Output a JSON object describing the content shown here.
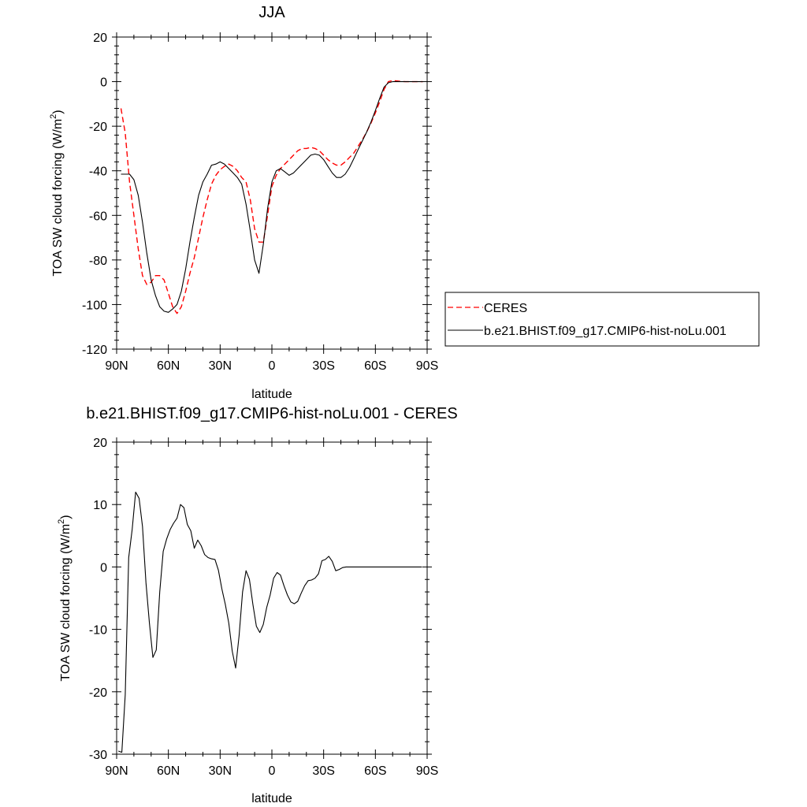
{
  "chart_data": [
    {
      "type": "line",
      "title": "JJA",
      "xlabel": "latitude",
      "ylabel": "TOA SW cloud forcing (W/m²)",
      "ylabel_parts": {
        "main": "TOA SW cloud forcing (W/m",
        "sup": "2",
        "end": ")"
      },
      "xlim": [
        90,
        -90
      ],
      "ylim": [
        -120,
        20
      ],
      "xticks": [
        90,
        60,
        30,
        0,
        -30,
        -60,
        -90
      ],
      "xtick_labels": [
        "90N",
        "60N",
        "30N",
        "0",
        "30S",
        "60S",
        "90S"
      ],
      "yticks": [
        20,
        0,
        -20,
        -40,
        -60,
        -80,
        -100,
        -120
      ],
      "ytick_labels": [
        "20",
        "0",
        "-20",
        "-40",
        "-60",
        "-80",
        "-100",
        "-120"
      ],
      "legend": {
        "placement": "right",
        "entries": [
          "CERES",
          "b.e21.BHIST.f09_g17.CMIP6-hist-noLu.001"
        ]
      },
      "series": [
        {
          "name": "CERES",
          "color": "#ff0000",
          "dash": "dashed",
          "points": [
            [
              87.5,
              -12
            ],
            [
              85,
              -23
            ],
            [
              82.5,
              -45
            ],
            [
              80,
              -60
            ],
            [
              77.5,
              -75
            ],
            [
              75,
              -87
            ],
            [
              72.5,
              -91
            ],
            [
              70,
              -90
            ],
            [
              67.5,
              -87
            ],
            [
              65,
              -87
            ],
            [
              62.5,
              -89
            ],
            [
              60,
              -95
            ],
            [
              57.5,
              -101
            ],
            [
              55,
              -104
            ],
            [
              52.5,
              -101
            ],
            [
              50,
              -94
            ],
            [
              47.5,
              -86
            ],
            [
              45,
              -79
            ],
            [
              42.5,
              -70
            ],
            [
              40,
              -61
            ],
            [
              37.5,
              -53
            ],
            [
              35,
              -46
            ],
            [
              32.5,
              -42
            ],
            [
              30,
              -39.5
            ],
            [
              27.5,
              -38
            ],
            [
              25,
              -37
            ],
            [
              22.5,
              -38
            ],
            [
              20,
              -40
            ],
            [
              17.5,
              -43
            ],
            [
              15,
              -45
            ],
            [
              12.5,
              -53
            ],
            [
              10,
              -66
            ],
            [
              7.5,
              -72
            ],
            [
              5,
              -72
            ],
            [
              2.5,
              -60
            ],
            [
              0,
              -47
            ],
            [
              -2.5,
              -42
            ],
            [
              -5,
              -39
            ],
            [
              -7.5,
              -37
            ],
            [
              -10,
              -35
            ],
            [
              -12.5,
              -33
            ],
            [
              -15,
              -31
            ],
            [
              -17.5,
              -30
            ],
            [
              -20,
              -30
            ],
            [
              -22.5,
              -29.5
            ],
            [
              -25,
              -30
            ],
            [
              -27.5,
              -31
            ],
            [
              -30,
              -33
            ],
            [
              -32.5,
              -35
            ],
            [
              -35,
              -36.5
            ],
            [
              -37.5,
              -37.5
            ],
            [
              -40,
              -37.5
            ],
            [
              -42.5,
              -36
            ],
            [
              -45,
              -34
            ],
            [
              -47.5,
              -32
            ],
            [
              -50,
              -29
            ],
            [
              -52.5,
              -26
            ],
            [
              -55,
              -22.5
            ],
            [
              -57.5,
              -18.5
            ],
            [
              -60,
              -14
            ],
            [
              -62.5,
              -9
            ],
            [
              -65,
              -3.5
            ],
            [
              -67.5,
              0
            ],
            [
              -70,
              0.5
            ],
            [
              -72.5,
              0.3
            ],
            [
              -75,
              0.1
            ],
            [
              -77.5,
              0
            ],
            [
              -80,
              0
            ],
            [
              -82.5,
              0
            ],
            [
              -85,
              0
            ],
            [
              -87.5,
              0
            ]
          ]
        },
        {
          "name": "b.e21.BHIST.f09_g17.CMIP6-hist-noLu.001",
          "color": "#000000",
          "dash": "solid",
          "points": [
            [
              87.5,
              -41.5
            ],
            [
              85,
              -41.5
            ],
            [
              82.5,
              -41.5
            ],
            [
              80,
              -44
            ],
            [
              77.5,
              -51
            ],
            [
              75,
              -63
            ],
            [
              72.5,
              -77
            ],
            [
              70,
              -89
            ],
            [
              67.5,
              -96
            ],
            [
              65,
              -101
            ],
            [
              62.5,
              -103
            ],
            [
              60,
              -103.5
            ],
            [
              57.5,
              -102
            ],
            [
              55,
              -100
            ],
            [
              52.5,
              -94
            ],
            [
              50,
              -84
            ],
            [
              47.5,
              -72
            ],
            [
              45,
              -61
            ],
            [
              42.5,
              -51
            ],
            [
              40,
              -45
            ],
            [
              37.5,
              -41.5
            ],
            [
              35,
              -37.5
            ],
            [
              32.5,
              -37
            ],
            [
              30,
              -36
            ],
            [
              27.5,
              -37
            ],
            [
              25,
              -39
            ],
            [
              22.5,
              -41
            ],
            [
              20,
              -43
            ],
            [
              17.5,
              -46
            ],
            [
              15,
              -55
            ],
            [
              12.5,
              -67
            ],
            [
              10,
              -80
            ],
            [
              7.5,
              -86
            ],
            [
              5,
              -73
            ],
            [
              2.5,
              -57
            ],
            [
              0,
              -45
            ],
            [
              -2.5,
              -40
            ],
            [
              -5,
              -39
            ],
            [
              -7.5,
              -40.5
            ],
            [
              -10,
              -42
            ],
            [
              -12.5,
              -41
            ],
            [
              -15,
              -39
            ],
            [
              -17.5,
              -37
            ],
            [
              -20,
              -35
            ],
            [
              -22.5,
              -33
            ],
            [
              -25,
              -32.5
            ],
            [
              -27.5,
              -33
            ],
            [
              -30,
              -35
            ],
            [
              -32.5,
              -38
            ],
            [
              -35,
              -41
            ],
            [
              -37.5,
              -43
            ],
            [
              -40,
              -43
            ],
            [
              -42.5,
              -41.5
            ],
            [
              -45,
              -38.5
            ],
            [
              -47.5,
              -34.5
            ],
            [
              -50,
              -30.5
            ],
            [
              -52.5,
              -26.5
            ],
            [
              -55,
              -22.5
            ],
            [
              -57.5,
              -18
            ],
            [
              -60,
              -13
            ],
            [
              -62.5,
              -7.5
            ],
            [
              -65,
              -2.5
            ],
            [
              -67.5,
              -0.5
            ],
            [
              -70,
              0
            ],
            [
              -72.5,
              0
            ],
            [
              -75,
              0
            ],
            [
              -77.5,
              0
            ],
            [
              -80,
              0
            ],
            [
              -82.5,
              0
            ],
            [
              -85,
              0
            ],
            [
              -87.5,
              0
            ]
          ]
        }
      ]
    },
    {
      "type": "line",
      "title": "b.e21.BHIST.f09_g17.CMIP6-hist-noLu.001 - CERES",
      "xlabel": "latitude",
      "ylabel": "TOA SW cloud forcing (W/m²)",
      "ylabel_parts": {
        "main": "TOA SW cloud forcing (W/m",
        "sup": "2",
        "end": ")"
      },
      "xlim": [
        90,
        -90
      ],
      "ylim": [
        -30,
        20
      ],
      "xticks": [
        90,
        60,
        30,
        0,
        -30,
        -60,
        -90
      ],
      "xtick_labels": [
        "90N",
        "60N",
        "30N",
        "0",
        "30S",
        "60S",
        "90S"
      ],
      "yticks": [
        20,
        10,
        0,
        -10,
        -20,
        -30
      ],
      "ytick_labels": [
        "20",
        "10",
        "0",
        "-10",
        "-20",
        "-30"
      ],
      "series": [
        {
          "color": "#000000",
          "dash": "solid",
          "points": [
            [
              89,
              -29.5
            ],
            [
              87,
              -29.7
            ],
            [
              85,
              -20.5
            ],
            [
              83,
              1.5
            ],
            [
              81,
              6
            ],
            [
              79,
              12
            ],
            [
              77,
              11
            ],
            [
              75,
              6.5
            ],
            [
              73,
              -2.5
            ],
            [
              71,
              -9
            ],
            [
              69,
              -14.5
            ],
            [
              67,
              -13.3
            ],
            [
              65,
              -4
            ],
            [
              63,
              2.5
            ],
            [
              61,
              4.5
            ],
            [
              59,
              6
            ],
            [
              57,
              7
            ],
            [
              55,
              7.8
            ],
            [
              53,
              10
            ],
            [
              51,
              9.5
            ],
            [
              49,
              6.8
            ],
            [
              47,
              5.8
            ],
            [
              45,
              3
            ],
            [
              43,
              4.3
            ],
            [
              41,
              3.4
            ],
            [
              39,
              2
            ],
            [
              37,
              1.5
            ],
            [
              35,
              1.3
            ],
            [
              33,
              1.2
            ],
            [
              31,
              -0.5
            ],
            [
              29,
              -3.5
            ],
            [
              27,
              -6
            ],
            [
              25,
              -9
            ],
            [
              23,
              -13.5
            ],
            [
              21,
              -16.2
            ],
            [
              19,
              -11
            ],
            [
              17,
              -4
            ],
            [
              15,
              -0.6
            ],
            [
              13,
              -2
            ],
            [
              11,
              -6
            ],
            [
              9,
              -9.5
            ],
            [
              7,
              -10.5
            ],
            [
              5,
              -9.2
            ],
            [
              3,
              -6.5
            ],
            [
              1,
              -4.5
            ],
            [
              -1,
              -1.8
            ],
            [
              -3,
              -0.9
            ],
            [
              -5,
              -1.3
            ],
            [
              -7,
              -3
            ],
            [
              -9,
              -4.5
            ],
            [
              -11,
              -5.6
            ],
            [
              -13,
              -5.9
            ],
            [
              -15,
              -5.5
            ],
            [
              -17,
              -4.2
            ],
            [
              -19,
              -3
            ],
            [
              -21,
              -2.2
            ],
            [
              -23,
              -2.1
            ],
            [
              -25,
              -1.8
            ],
            [
              -27,
              -1.1
            ],
            [
              -29,
              1
            ],
            [
              -31,
              1.2
            ],
            [
              -33,
              1.7
            ],
            [
              -35,
              0.9
            ],
            [
              -37,
              -0.6
            ],
            [
              -39,
              -0.4
            ],
            [
              -41,
              -0.1
            ],
            [
              -43,
              0
            ],
            [
              -45,
              0
            ],
            [
              -47,
              0
            ],
            [
              -49,
              0
            ],
            [
              -51,
              0
            ],
            [
              -53,
              0
            ],
            [
              -55,
              0
            ],
            [
              -57,
              0
            ],
            [
              -59,
              0
            ],
            [
              -61,
              0
            ],
            [
              -63,
              0
            ],
            [
              -65,
              0
            ],
            [
              -67,
              0
            ],
            [
              -69,
              0
            ],
            [
              -71,
              0
            ],
            [
              -73,
              0
            ],
            [
              -75,
              0
            ],
            [
              -77,
              0
            ],
            [
              -79,
              0
            ],
            [
              -81,
              0
            ],
            [
              -83,
              0
            ],
            [
              -85,
              0
            ],
            [
              -87,
              0
            ]
          ]
        }
      ]
    }
  ]
}
